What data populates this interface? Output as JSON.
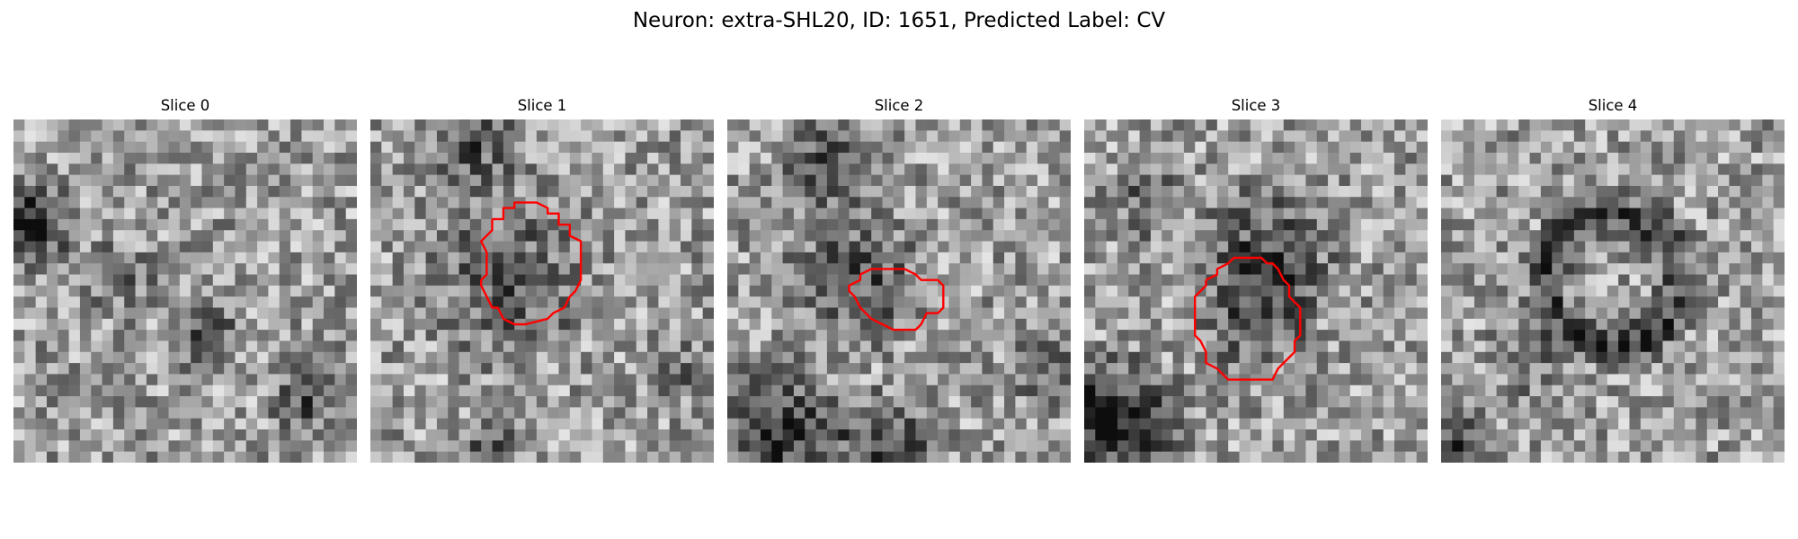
{
  "figure": {
    "title": "Neuron: extra-SHL20, ID: 1651, Predicted Label: CV"
  },
  "panels": [
    {
      "title": "Slice 0",
      "has_contour": false,
      "contour_color": "#ff0000"
    },
    {
      "title": "Slice 1",
      "has_contour": true,
      "contour_color": "#ff0000"
    },
    {
      "title": "Slice 2",
      "has_contour": true,
      "contour_color": "#ff0000"
    },
    {
      "title": "Slice 3",
      "has_contour": true,
      "contour_color": "#ff0000"
    },
    {
      "title": "Slice 4",
      "has_contour": false,
      "contour_color": "#ff0000"
    }
  ],
  "colormap": "gray"
}
